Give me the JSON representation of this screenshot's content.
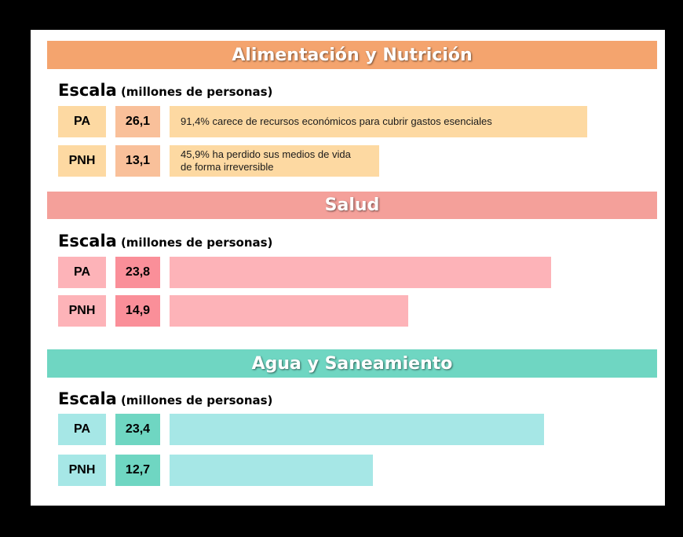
{
  "chart_data": [
    {
      "type": "bar",
      "title": "Alimentación y Nutrición",
      "scale_label": "Escala",
      "scale_unit": "(millones de personas)",
      "categories": [
        "PA",
        "PNH"
      ],
      "values": [
        26.1,
        13.1
      ],
      "value_labels": [
        "26,1",
        "13,1"
      ],
      "annotations": [
        "91,4% carece de recursos económicos para cubrir gastos esenciales",
        "45,9% ha perdido sus medios de vida\nde forma irreversible"
      ],
      "colors": {
        "header": "#F4A46E",
        "label_cell": "#FDD9A2",
        "value_cell": "#F9C09A",
        "bar": "#FDD9A2"
      }
    },
    {
      "type": "bar",
      "title": "Salud",
      "scale_label": "Escala",
      "scale_unit": "(millones de personas)",
      "categories": [
        "PA",
        "PNH"
      ],
      "values": [
        23.8,
        14.9
      ],
      "value_labels": [
        "23,8",
        "14,9"
      ],
      "annotations": [
        "",
        ""
      ],
      "colors": {
        "header": "#F4A09A",
        "label_cell": "#FDB3B8",
        "value_cell": "#FA8F99",
        "bar": "#FDB3B8"
      }
    },
    {
      "type": "bar",
      "title": "Agua y Saneamiento",
      "scale_label": "Escala",
      "scale_unit": "(millones de personas)",
      "categories": [
        "PA",
        "PNH"
      ],
      "values": [
        23.4,
        12.7
      ],
      "value_labels": [
        "23,4",
        "12,7"
      ],
      "annotations": [
        "",
        ""
      ],
      "colors": {
        "header": "#6FD6C2",
        "label_cell": "#A6E7E6",
        "value_cell": "#6FD6C2",
        "bar": "#A6E7E6"
      }
    }
  ]
}
